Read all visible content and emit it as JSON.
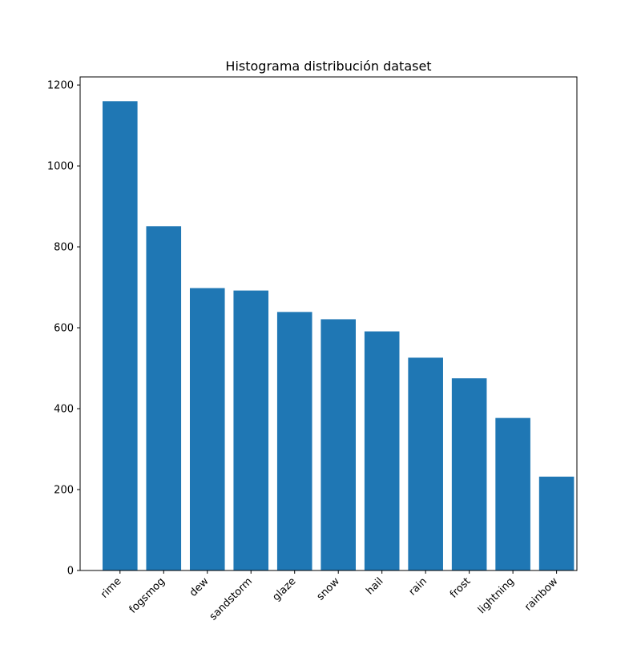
{
  "chart_data": {
    "type": "bar",
    "title": "Histograma distribución dataset",
    "xlabel": "",
    "ylabel": "",
    "categories": [
      "rime",
      "fogsmog",
      "dew",
      "sandstorm",
      "glaze",
      "snow",
      "hail",
      "rain",
      "frost",
      "lightning",
      "rainbow"
    ],
    "values": [
      1160,
      851,
      698,
      692,
      639,
      621,
      591,
      526,
      475,
      377,
      232
    ],
    "ylim": [
      0,
      1220
    ],
    "yticks": [
      0,
      200,
      400,
      600,
      800,
      1000,
      1200
    ],
    "grid": false,
    "legend": "none",
    "bar_color": "#1f77b4",
    "x_tick_rotation_deg": -45
  }
}
